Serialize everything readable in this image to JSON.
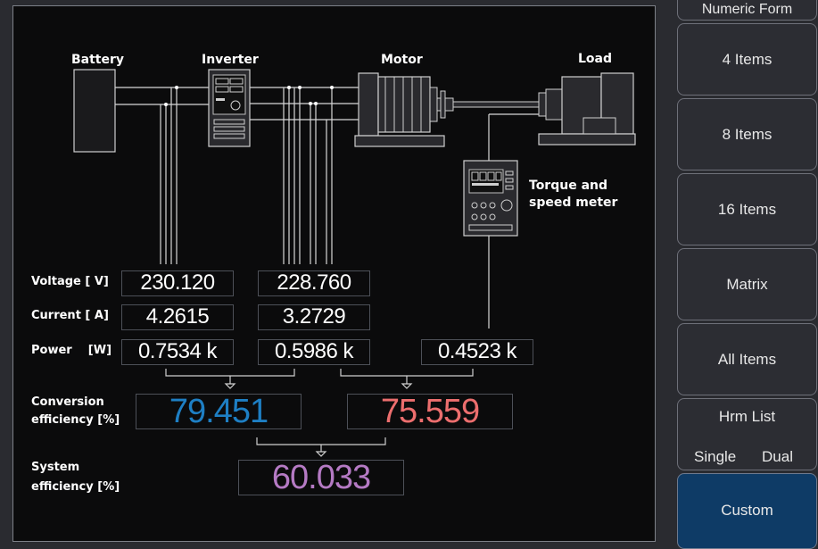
{
  "diagram": {
    "labels": {
      "battery": "Battery",
      "inverter": "Inverter",
      "motor": "Motor",
      "load": "Load",
      "meter_line1": "Torque and",
      "meter_line2": "speed meter"
    }
  },
  "rows": {
    "voltage": "Voltage [ V]",
    "current": "Current [ A]",
    "power": "Power    [W]",
    "conversion_line1": "Conversion",
    "conversion_line2": "efficiency [%]",
    "system_line1": "System",
    "system_line2": "efficiency [%]"
  },
  "values": {
    "voltage_in": "230.120",
    "voltage_out": "228.760",
    "current_in": "4.2615",
    "current_out": "3.2729",
    "power_in": "0.7534 k",
    "power_out": "0.5986 k",
    "power_mech": "0.4523 k",
    "conv_eff_1": "79.451",
    "conv_eff_2": "75.559",
    "system_eff": "60.033"
  },
  "colors": {
    "conv_eff_1": "#1e7fc4",
    "conv_eff_2": "#ec6e6e",
    "system_eff": "#b57ac4"
  },
  "menu": {
    "title": "Numeric Form",
    "items": [
      "4 Items",
      "8 Items",
      "16 Items",
      "Matrix",
      "All Items"
    ],
    "hrm_title": "Hrm List",
    "hrm_single": "Single",
    "hrm_dual": "Dual",
    "custom": "Custom"
  }
}
